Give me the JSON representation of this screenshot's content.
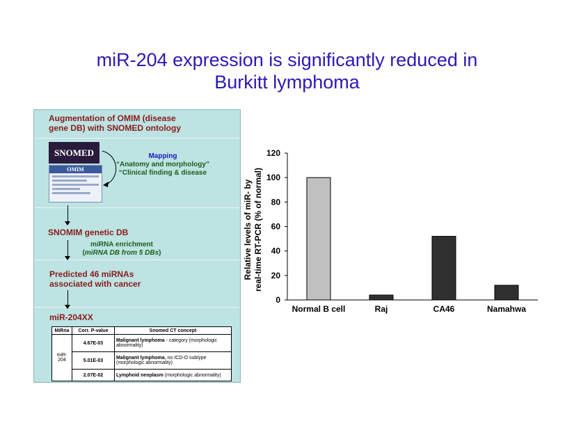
{
  "slide": {
    "title_line1": "miR-204 expression is significantly reduced in",
    "title_line2": "Burkitt lymphoma"
  },
  "panel": {
    "heading": [
      "Augmentation of OMIM (disease",
      "gene DB) with SNOMED ontology"
    ],
    "snomed_logo": "SNOMED",
    "omim_logo": "OMIM",
    "mapping_label": "Mapping",
    "mapping_lines": [
      "“Anatomy and morphology”",
      "“Clinical finding & disease"
    ],
    "snomim": "SNOMIM genetic DB",
    "enrichment_line1": "miRNA enrichment",
    "enrichment_open": "(",
    "enrichment_italic": "miRNA DB from 5 DBs",
    "enrichment_close": ")",
    "predicted": [
      "Predicted 46 miRNAs",
      "associated with cancer"
    ],
    "mir": "miR-204XX",
    "table": {
      "headers": [
        "MiRna",
        "Corr. P-value",
        "Snomed CT concept"
      ],
      "mirna": "miR-204",
      "rows": [
        {
          "pvalue": "4.67E-03",
          "concept_bold": "Malignant lymphoma",
          "concept_rest": " - category (morphologic abnormality)"
        },
        {
          "pvalue": "5.01E-03",
          "concept_bold": "Malignant lymphoma",
          "concept_rest": ", no ICD-O subtype (morphologic abnormality)"
        },
        {
          "pvalue": "2.07E-02",
          "concept_bold": "Lymphoid neoplasm",
          "concept_rest": " (morphologic abnormality)"
        }
      ]
    }
  },
  "chart_data": {
    "type": "bar",
    "categories": [
      "Normal B cell",
      "Raj",
      "CA46",
      "Namahwa"
    ],
    "values": [
      100,
      4,
      52,
      12
    ],
    "ylabel_line1": "Relative levels of miR-    by",
    "ylabel_line2": "real-time RT-PCR (% of normal)",
    "xlabel": "",
    "ylim": [
      0,
      120
    ],
    "yticks": [
      "0",
      "20",
      "40",
      "60",
      "80",
      "100",
      "120"
    ],
    "colors": [
      "#c0c0c0",
      "#303030",
      "#303030",
      "#303030"
    ],
    "grid": false,
    "legend": "none"
  }
}
